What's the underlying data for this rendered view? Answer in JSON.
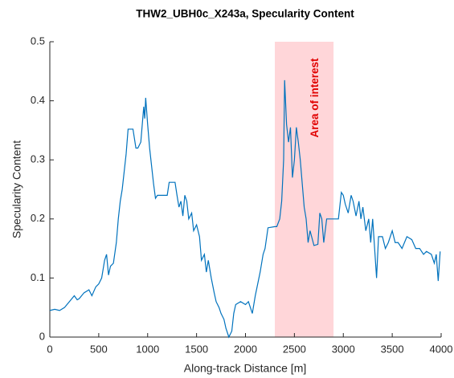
{
  "chart_data": {
    "type": "line",
    "title": "THW2_UBH0c_X243a, Specularity Content",
    "xlabel": "Along-track Distance [m]",
    "ylabel": "Specularity Content",
    "xlim": [
      0,
      4000
    ],
    "ylim": [
      0,
      0.5
    ],
    "xticks": [
      0,
      500,
      1000,
      1500,
      2000,
      2500,
      3000,
      3500,
      4000
    ],
    "yticks": [
      0,
      0.1,
      0.2,
      0.3,
      0.4,
      0.5
    ],
    "highlight": {
      "x": [
        2300,
        2900
      ],
      "color": "#ffd6d9",
      "label": "Area of interest",
      "label_color": "#e00000"
    },
    "x": [
      0,
      50,
      100,
      150,
      200,
      250,
      280,
      300,
      350,
      400,
      430,
      470,
      500,
      530,
      560,
      580,
      600,
      620,
      650,
      680,
      700,
      720,
      740,
      760,
      780,
      800,
      850,
      880,
      900,
      930,
      960,
      970,
      980,
      1000,
      1020,
      1040,
      1060,
      1080,
      1100,
      1150,
      1200,
      1220,
      1280,
      1300,
      1320,
      1340,
      1360,
      1380,
      1400,
      1420,
      1450,
      1470,
      1500,
      1530,
      1550,
      1580,
      1600,
      1620,
      1650,
      1680,
      1700,
      1730,
      1750,
      1780,
      1800,
      1830,
      1860,
      1880,
      1900,
      1950,
      2000,
      2030,
      2050,
      2070,
      2100,
      2150,
      2180,
      2200,
      2230,
      2300,
      2320,
      2350,
      2370,
      2390,
      2400,
      2420,
      2440,
      2460,
      2480,
      2500,
      2520,
      2540,
      2560,
      2580,
      2600,
      2620,
      2640,
      2660,
      2700,
      2740,
      2760,
      2780,
      2800,
      2830,
      2900,
      2950,
      2980,
      3000,
      3020,
      3050,
      3080,
      3100,
      3130,
      3160,
      3180,
      3200,
      3230,
      3260,
      3280,
      3300,
      3320,
      3340,
      3360,
      3400,
      3430,
      3460,
      3500,
      3530,
      3560,
      3600,
      3650,
      3700,
      3740,
      3780,
      3820,
      3850,
      3900,
      3930,
      3950,
      3970,
      3990
    ],
    "series": [
      {
        "name": "Specularity Content",
        "color": "#0072bd",
        "values": [
          0.045,
          0.047,
          0.045,
          0.05,
          0.06,
          0.07,
          0.063,
          0.065,
          0.075,
          0.08,
          0.07,
          0.085,
          0.09,
          0.1,
          0.13,
          0.14,
          0.105,
          0.12,
          0.125,
          0.16,
          0.2,
          0.23,
          0.25,
          0.28,
          0.31,
          0.352,
          0.352,
          0.32,
          0.32,
          0.33,
          0.39,
          0.37,
          0.405,
          0.36,
          0.32,
          0.29,
          0.26,
          0.235,
          0.24,
          0.24,
          0.24,
          0.262,
          0.262,
          0.24,
          0.22,
          0.23,
          0.205,
          0.24,
          0.23,
          0.2,
          0.21,
          0.18,
          0.19,
          0.17,
          0.13,
          0.14,
          0.11,
          0.13,
          0.1,
          0.075,
          0.06,
          0.05,
          0.04,
          0.03,
          0.015,
          0.0,
          0.01,
          0.04,
          0.055,
          0.06,
          0.055,
          0.06,
          0.05,
          0.04,
          0.07,
          0.11,
          0.14,
          0.15,
          0.185,
          0.187,
          0.187,
          0.2,
          0.23,
          0.3,
          0.435,
          0.36,
          0.33,
          0.355,
          0.27,
          0.3,
          0.355,
          0.33,
          0.3,
          0.26,
          0.22,
          0.2,
          0.16,
          0.18,
          0.155,
          0.157,
          0.21,
          0.2,
          0.16,
          0.2,
          0.2,
          0.2,
          0.245,
          0.24,
          0.225,
          0.21,
          0.24,
          0.23,
          0.205,
          0.23,
          0.2,
          0.22,
          0.18,
          0.2,
          0.16,
          0.2,
          0.15,
          0.1,
          0.17,
          0.17,
          0.15,
          0.16,
          0.18,
          0.16,
          0.16,
          0.15,
          0.17,
          0.165,
          0.15,
          0.15,
          0.14,
          0.145,
          0.14,
          0.125,
          0.14,
          0.095,
          0.145
        ]
      }
    ]
  }
}
